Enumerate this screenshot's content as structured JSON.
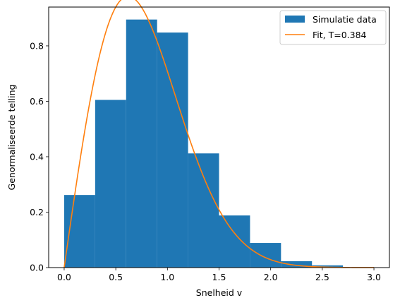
{
  "chart_data": {
    "type": "bar",
    "xlabel": "Snelheid v",
    "ylabel": "Genormaliseerde telling",
    "xlim": [
      -0.15,
      3.15
    ],
    "ylim": [
      0,
      0.94
    ],
    "xticks": [
      0.0,
      0.5,
      1.0,
      1.5,
      2.0,
      2.5,
      3.0
    ],
    "xtick_labels": [
      "0.0",
      "0.5",
      "1.0",
      "1.5",
      "2.0",
      "2.5",
      "3.0"
    ],
    "yticks": [
      0.0,
      0.2,
      0.4,
      0.6,
      0.8
    ],
    "ytick_labels": [
      "0.0",
      "0.2",
      "0.4",
      "0.6",
      "0.8"
    ],
    "grid": false,
    "legend_position": "top-right",
    "series": [
      {
        "name": "Simulatie data",
        "kind": "histogram",
        "color": "#1f77b4",
        "bin_edges": [
          0.0,
          0.3,
          0.6,
          0.9,
          1.2,
          1.5,
          1.8,
          2.1,
          2.4,
          2.7
        ],
        "values": [
          0.262,
          0.605,
          0.895,
          0.848,
          0.412,
          0.188,
          0.089,
          0.023,
          0.008
        ]
      },
      {
        "name": "Fit, T=0.384",
        "kind": "line",
        "color": "#ff7f0e",
        "function": "v / T * exp(-v^2 / (2*T))",
        "T": 0.384,
        "x_range": [
          0.0,
          3.0
        ]
      }
    ]
  }
}
